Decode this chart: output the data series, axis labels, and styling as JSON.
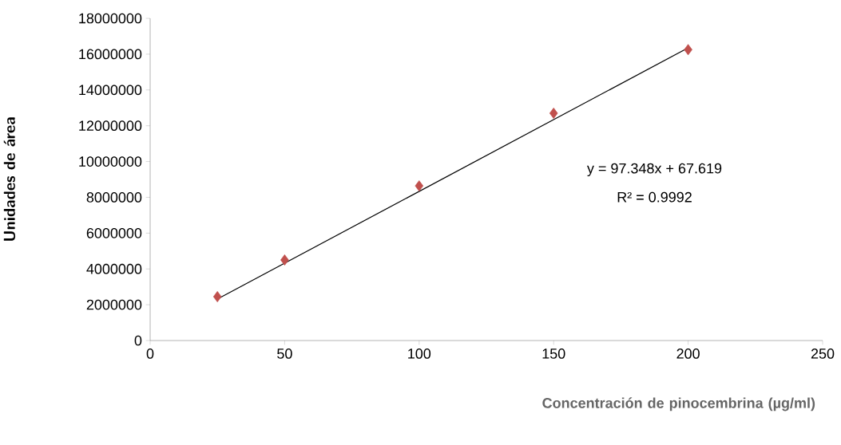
{
  "chart_data": {
    "type": "scatter",
    "xlabel": "Concentración de pinocembrina (µg/ml)",
    "ylabel": "Unidades de área",
    "series": [
      {
        "color": "#c0504d",
        "marker": "diamond",
        "x": [
          25,
          50,
          100,
          150,
          200
        ],
        "values": [
          2450000,
          4500000,
          8640000,
          12700000,
          16250000
        ]
      },
      {
        "type": "line",
        "color": "#000000",
        "marker": "none",
        "line_style": "solid",
        "x": [
          25,
          200
        ],
        "values": [
          2320000,
          16350000
        ]
      }
    ],
    "xlim": [
      0,
      250
    ],
    "xticks": [
      0,
      50,
      100,
      150,
      200,
      250
    ],
    "ylim": [
      0,
      18000000
    ],
    "yticks": [
      0,
      2000000,
      4000000,
      6000000,
      8000000,
      10000000,
      12000000,
      14000000,
      16000000,
      18000000
    ],
    "annotations": [
      "y = 97.348x + 67.619",
      "R² = 0.9992"
    ],
    "grid": false
  }
}
